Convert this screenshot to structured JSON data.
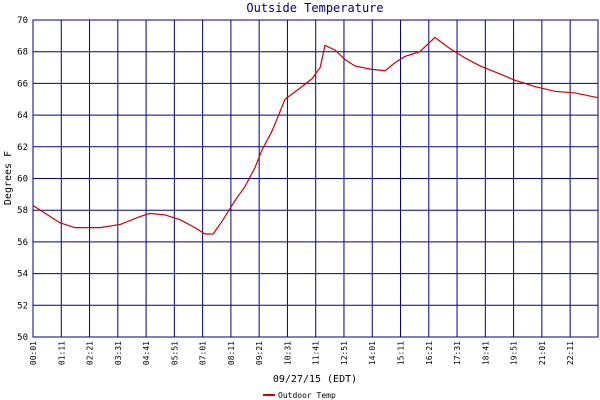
{
  "chart_data": {
    "type": "line",
    "title": "Outside Temperature",
    "xlabel": "09/27/15 (EDT)",
    "ylabel": "Degrees F",
    "x": [
      1,
      68,
      105,
      167,
      217,
      266,
      291,
      328,
      365,
      402,
      427,
      447,
      469,
      501,
      526,
      551,
      568,
      593,
      625,
      662,
      692,
      712,
      724,
      749,
      774,
      798,
      836,
      873,
      897,
      922,
      959,
      996,
      1033,
      1071,
      1108,
      1157,
      1194,
      1244,
      1293,
      1343,
      1380,
      1400
    ],
    "series": [
      {
        "name": "Outdoor Temp",
        "color": "#cc0000",
        "values": [
          58.3,
          57.2,
          56.9,
          56.9,
          57.1,
          57.6,
          57.8,
          57.7,
          57.4,
          56.9,
          56.5,
          56.5,
          57.3,
          58.6,
          59.5,
          60.7,
          61.8,
          63.0,
          65.0,
          65.7,
          66.3,
          67.0,
          68.4,
          68.1,
          67.5,
          67.1,
          66.9,
          66.8,
          67.3,
          67.7,
          68.0,
          68.9,
          68.2,
          67.6,
          67.1,
          66.6,
          66.2,
          65.8,
          65.5,
          65.4,
          65.2,
          65.1
        ]
      }
    ],
    "xlim": [
      1,
      1400
    ],
    "xticks": [
      {
        "value": 1,
        "label": "00:01"
      },
      {
        "value": 71,
        "label": "01:11"
      },
      {
        "value": 141,
        "label": "02:21"
      },
      {
        "value": 211,
        "label": "03:31"
      },
      {
        "value": 281,
        "label": "04:41"
      },
      {
        "value": 351,
        "label": "05:51"
      },
      {
        "value": 421,
        "label": "07:01"
      },
      {
        "value": 491,
        "label": "08:11"
      },
      {
        "value": 561,
        "label": "09:21"
      },
      {
        "value": 631,
        "label": "10:31"
      },
      {
        "value": 701,
        "label": "11:41"
      },
      {
        "value": 771,
        "label": "12:51"
      },
      {
        "value": 841,
        "label": "14:01"
      },
      {
        "value": 911,
        "label": "15:11"
      },
      {
        "value": 981,
        "label": "16:21"
      },
      {
        "value": 1051,
        "label": "17:31"
      },
      {
        "value": 1121,
        "label": "18:41"
      },
      {
        "value": 1191,
        "label": "19:51"
      },
      {
        "value": 1261,
        "label": "21:01"
      },
      {
        "value": 1331,
        "label": "22:11"
      }
    ],
    "ylim": [
      50,
      70
    ],
    "yticks": [
      50,
      52,
      54,
      56,
      58,
      60,
      62,
      64,
      66,
      68,
      70
    ],
    "grid": true,
    "grid_color": "#000080",
    "legend": "bottom"
  }
}
